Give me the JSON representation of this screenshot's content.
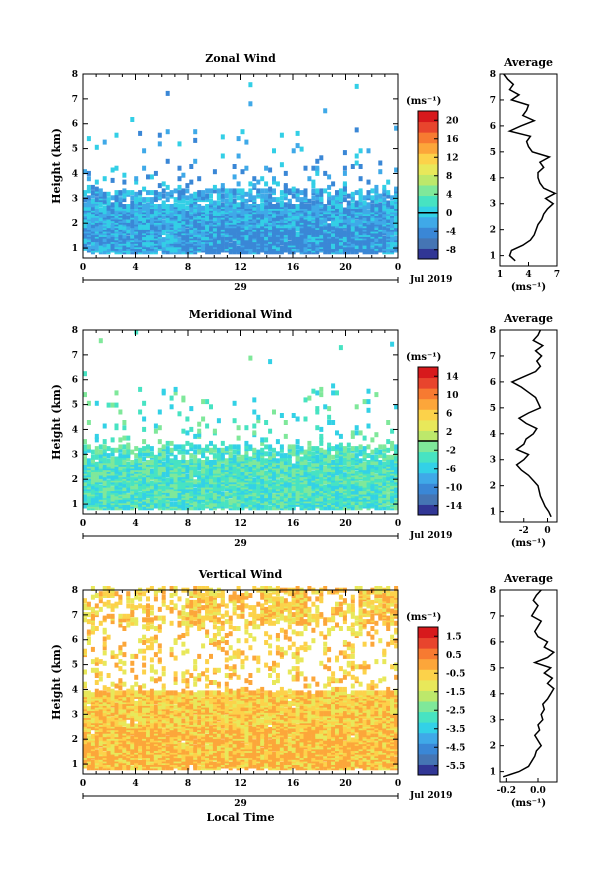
{
  "date_label": "Jul 2019",
  "colors": {
    "scale": [
      "#313695",
      "#4575b4",
      "#3a87d6",
      "#3fa9e8",
      "#33d1e6",
      "#47e3c2",
      "#7fe89a",
      "#bde86b",
      "#e8e85a",
      "#fcd24a",
      "#fca63a",
      "#f77a31",
      "#e8452d",
      "#d7191c"
    ],
    "zonal_dominant": [
      "#33cfe6",
      "#3fa9e8",
      "#3a87d6"
    ],
    "meridional_dominant": [
      "#33d1e6",
      "#47e3c2",
      "#7fe89a"
    ],
    "vertical_dominant": [
      "#fcd24a",
      "#e8e85a",
      "#fca63a"
    ]
  },
  "chart_data": [
    {
      "type": "heatmap",
      "title": "Zonal Wind",
      "ylabel": "Height (km)",
      "xlabel": "",
      "xlim": [
        0,
        24
      ],
      "ylim": [
        0.6,
        8
      ],
      "x_ticks": [
        "0",
        "4",
        "8",
        "12",
        "16",
        "20",
        "0"
      ],
      "y_ticks": [
        "1",
        "2",
        "3",
        "4",
        "5",
        "6",
        "7",
        "8"
      ],
      "day_label": "29",
      "colorbar": {
        "unit": "(ms⁻¹)",
        "ticks": [
          "20",
          "16",
          "12",
          "8",
          "4",
          "0",
          "-4",
          "-8"
        ],
        "min": -10,
        "max": 22,
        "zero_line": 0
      },
      "average": {
        "title": "Average",
        "xlim": [
          1,
          7
        ],
        "x_ticks": [
          "1",
          "4",
          "7"
        ],
        "xlabel": "(ms⁻¹)",
        "heights": [
          0.8,
          1.0,
          1.2,
          1.4,
          1.6,
          1.8,
          2.0,
          2.2,
          2.4,
          2.6,
          2.8,
          3.0,
          3.2,
          3.4,
          3.6,
          3.8,
          4.0,
          4.2,
          4.4,
          4.6,
          4.8,
          5.0,
          5.2,
          5.4,
          5.6,
          5.8,
          6.0,
          6.2,
          6.4,
          6.6,
          6.8,
          7.0,
          7.2,
          7.4,
          7.6,
          7.8,
          8.0
        ],
        "values": [
          2.6,
          2.0,
          2.2,
          3.4,
          4.2,
          4.6,
          4.8,
          5.0,
          5.4,
          5.6,
          6.0,
          6.6,
          5.8,
          6.8,
          5.6,
          5.2,
          5.0,
          5.0,
          5.6,
          5.2,
          6.2,
          4.4,
          4.0,
          3.8,
          4.2,
          2.0,
          3.2,
          4.6,
          3.4,
          3.8,
          4.0,
          2.2,
          3.0,
          2.0,
          2.4,
          1.8,
          1.4
        ]
      }
    },
    {
      "type": "heatmap",
      "title": "Meridional Wind",
      "ylabel": "Height (km)",
      "xlabel": "",
      "xlim": [
        0,
        24
      ],
      "ylim": [
        0.6,
        8
      ],
      "x_ticks": [
        "0",
        "4",
        "8",
        "12",
        "16",
        "20",
        "0"
      ],
      "y_ticks": [
        "1",
        "2",
        "3",
        "4",
        "5",
        "6",
        "7",
        "8"
      ],
      "day_label": "29",
      "colorbar": {
        "unit": "(ms⁻¹)",
        "ticks": [
          "14",
          "10",
          "6",
          "2",
          "-2",
          "-6",
          "-10",
          "-14"
        ],
        "min": -16,
        "max": 16,
        "zero_line": 0
      },
      "average": {
        "title": "Average",
        "xlim": [
          -4,
          0.8
        ],
        "x_ticks": [
          "-2",
          "0"
        ],
        "xlabel": "(ms⁻¹)",
        "heights": [
          0.8,
          1.0,
          1.2,
          1.4,
          1.6,
          1.8,
          2.0,
          2.2,
          2.4,
          2.6,
          2.8,
          3.0,
          3.2,
          3.4,
          3.6,
          3.8,
          4.0,
          4.2,
          4.4,
          4.6,
          4.8,
          5.0,
          5.2,
          5.4,
          5.6,
          5.8,
          6.0,
          6.2,
          6.4,
          6.6,
          6.8,
          7.0,
          7.2,
          7.4,
          7.6,
          7.8,
          8.0
        ],
        "values": [
          0.3,
          0.1,
          -0.2,
          -0.4,
          -0.6,
          -0.7,
          -0.8,
          -1.2,
          -1.6,
          -2.2,
          -2.6,
          -2.0,
          -1.6,
          -2.6,
          -2.0,
          -1.8,
          -1.2,
          -0.9,
          -1.8,
          -2.4,
          -1.6,
          -0.6,
          -0.8,
          -1.0,
          -1.6,
          -2.2,
          -3.0,
          -2.0,
          -1.0,
          -0.6,
          -0.9,
          -0.5,
          -1.0,
          -0.4,
          -1.2,
          -0.8,
          -0.6
        ]
      }
    },
    {
      "type": "heatmap",
      "title": "Vertical Wind",
      "ylabel": "Height (km)",
      "xlabel": "Local Time",
      "xlim": [
        0,
        24
      ],
      "ylim": [
        0.6,
        8
      ],
      "x_ticks": [
        "0",
        "4",
        "8",
        "12",
        "16",
        "20",
        "0"
      ],
      "y_ticks": [
        "1",
        "2",
        "3",
        "4",
        "5",
        "6",
        "7",
        "8"
      ],
      "day_label": "29",
      "colorbar": {
        "unit": "(ms⁻¹)",
        "ticks": [
          "1.5",
          "0.5",
          "-0.5",
          "-1.5",
          "-2.5",
          "-3.5",
          "-4.5",
          "-5.5"
        ],
        "min": -6,
        "max": 2,
        "zero_line": null
      },
      "average": {
        "title": "Average",
        "xlim": [
          -0.24,
          0.12
        ],
        "x_ticks": [
          "-0.2",
          "0.0"
        ],
        "xlabel": "(ms⁻¹)",
        "heights": [
          0.8,
          1.0,
          1.2,
          1.4,
          1.6,
          1.8,
          2.0,
          2.2,
          2.4,
          2.6,
          2.8,
          3.0,
          3.2,
          3.4,
          3.6,
          3.8,
          4.0,
          4.2,
          4.4,
          4.6,
          4.8,
          5.0,
          5.2,
          5.4,
          5.6,
          5.8,
          6.0,
          6.2,
          6.4,
          6.6,
          6.8,
          7.0,
          7.2,
          7.4,
          7.6,
          7.8,
          8.0
        ],
        "values": [
          -0.22,
          -0.12,
          -0.06,
          -0.04,
          -0.02,
          -0.01,
          0.02,
          0.0,
          -0.02,
          0.01,
          0.0,
          0.03,
          0.02,
          0.04,
          0.03,
          0.06,
          0.08,
          0.1,
          0.06,
          0.09,
          0.04,
          0.08,
          -0.02,
          0.06,
          0.1,
          0.04,
          0.06,
          0.0,
          -0.02,
          0.0,
          0.02,
          -0.04,
          -0.02,
          0.0,
          -0.03,
          -0.01,
          0.02
        ]
      }
    }
  ]
}
